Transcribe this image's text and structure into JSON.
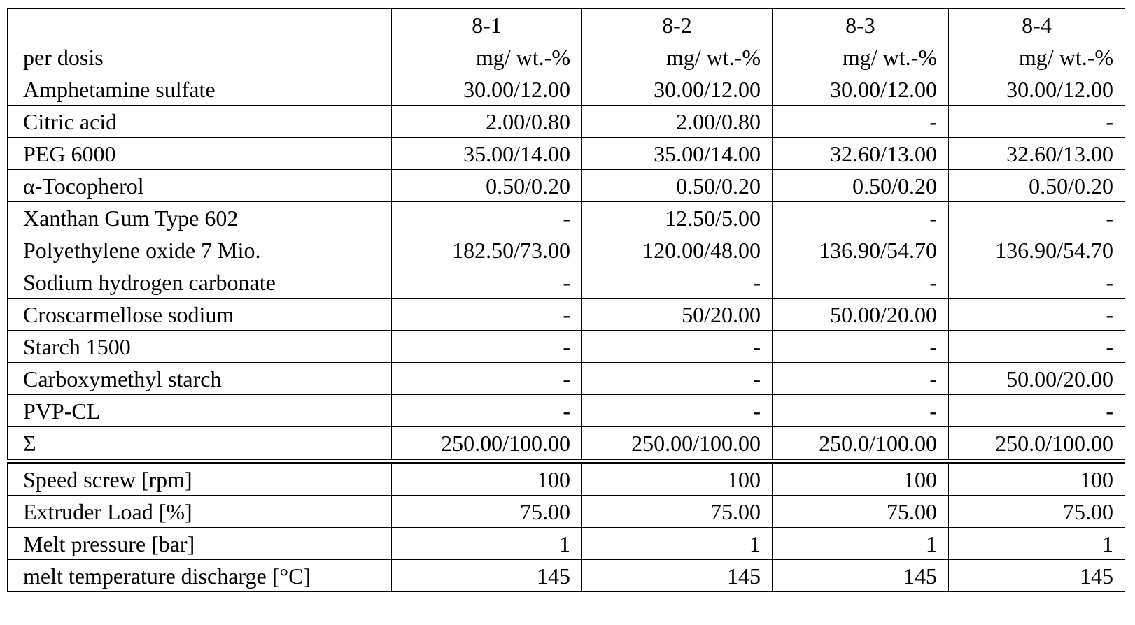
{
  "table": {
    "columns": [
      "8-1",
      "8-2",
      "8-3",
      "8-4"
    ],
    "rows": [
      [
        "per dosis",
        "mg/ wt.-%",
        "mg/ wt.-%",
        "mg/ wt.-%",
        "mg/ wt.-%"
      ],
      [
        "Amphetamine sulfate",
        "30.00/12.00",
        "30.00/12.00",
        "30.00/12.00",
        "30.00/12.00"
      ],
      [
        "Citric acid",
        "2.00/0.80",
        "2.00/0.80",
        "-",
        "-"
      ],
      [
        "PEG 6000",
        "35.00/14.00",
        "35.00/14.00",
        "32.60/13.00",
        "32.60/13.00"
      ],
      [
        "α-Tocopherol",
        "0.50/0.20",
        "0.50/0.20",
        "0.50/0.20",
        "0.50/0.20"
      ],
      [
        "Xanthan Gum Type 602",
        "-",
        "12.50/5.00",
        "-",
        "-"
      ],
      [
        "Polyethylene oxide 7 Mio.",
        "182.50/73.00",
        "120.00/48.00",
        "136.90/54.70",
        "136.90/54.70"
      ],
      [
        "Sodium hydrogen carbonate",
        "-",
        "-",
        "-",
        "-"
      ],
      [
        "Croscarmellose sodium",
        "-",
        "50/20.00",
        "50.00/20.00",
        "-"
      ],
      [
        "Starch 1500",
        "-",
        "-",
        "-",
        "-"
      ],
      [
        "Carboxymethyl starch",
        "-",
        "-",
        "-",
        "50.00/20.00"
      ],
      [
        "PVP-CL",
        "-",
        "-",
        "-",
        "-"
      ],
      [
        "Σ",
        "250.00/100.00",
        "250.00/100.00",
        "250.0/100.00",
        "250.0/100.00"
      ]
    ],
    "process_rows": [
      [
        "Speed screw [rpm]",
        "100",
        "100",
        "100",
        "100"
      ],
      [
        "Extruder Load [%]",
        "75.00",
        "75.00",
        "75.00",
        "75.00"
      ],
      [
        "Melt pressure [bar]",
        "1",
        "1",
        "1",
        "1"
      ],
      [
        "melt temperature discharge [°C]",
        "145",
        "145",
        "145",
        "145"
      ]
    ]
  }
}
